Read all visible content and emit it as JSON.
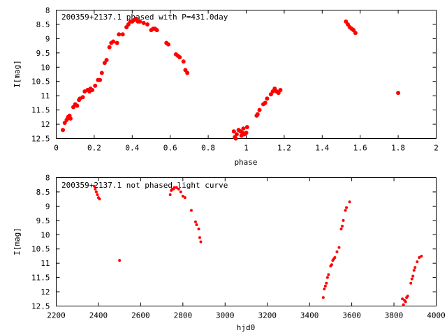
{
  "chart_data": [
    {
      "type": "scatter",
      "title": "200359+2137.1 phased with P=431.0day",
      "xlabel": "phase",
      "ylabel": "I[mag]",
      "xlim": [
        0,
        2
      ],
      "ylim": [
        12.5,
        8
      ],
      "y_inverted": true,
      "grid": false,
      "legend": "none",
      "marker_color": "#ff0000",
      "xticks": [
        "0",
        "0.2",
        "0.4",
        "0.6",
        "0.8",
        "1",
        "1.2",
        "1.4",
        "1.6",
        "1.8",
        "2"
      ],
      "yticks": [
        "8",
        "8.5",
        "9",
        "9.5",
        "10",
        "10.5",
        "11",
        "11.5",
        "12",
        "12.5"
      ],
      "series": [
        {
          "x": [
            0.035,
            0.045,
            0.055,
            0.062,
            0.07,
            0.075,
            0.09,
            0.1,
            0.11,
            0.12,
            0.125,
            0.14,
            0.15,
            0.165,
            0.175,
            0.18,
            0.19,
            0.205,
            0.22,
            0.23,
            0.24,
            0.255,
            0.265,
            0.28,
            0.29,
            0.3,
            0.32,
            0.33,
            0.35,
            0.37,
            0.38,
            0.39,
            0.4,
            0.41,
            0.42,
            0.43,
            0.44,
            0.46,
            0.48,
            0.5,
            0.51,
            0.52,
            0.53,
            0.58,
            0.59,
            0.63,
            0.64,
            0.65,
            0.67,
            0.68,
            0.69,
            0.935,
            0.94,
            0.945,
            0.95,
            0.96,
            0.97,
            0.975,
            0.98,
            0.985,
            0.99,
            1.0,
            1.005,
            1.055,
            1.06,
            1.07,
            1.09,
            1.1,
            1.11,
            1.13,
            1.14,
            1.15,
            1.16,
            1.17,
            1.18,
            1.525,
            1.535,
            1.545,
            1.555,
            1.565,
            1.575,
            1.8
          ],
          "y": [
            12.2,
            11.95,
            11.85,
            11.75,
            11.7,
            11.8,
            11.4,
            11.3,
            11.35,
            11.15,
            11.1,
            11.05,
            10.85,
            10.8,
            10.85,
            10.75,
            10.8,
            10.65,
            10.45,
            10.45,
            10.2,
            9.85,
            9.75,
            9.3,
            9.15,
            9.1,
            9.15,
            8.85,
            8.85,
            8.6,
            8.5,
            8.4,
            8.4,
            8.35,
            8.3,
            8.4,
            8.4,
            8.45,
            8.5,
            8.7,
            8.65,
            8.65,
            8.7,
            9.15,
            9.2,
            9.55,
            9.6,
            9.65,
            9.8,
            10.1,
            10.2,
            12.25,
            12.45,
            12.5,
            12.35,
            12.2,
            12.25,
            12.4,
            12.3,
            12.15,
            12.35,
            12.3,
            12.1,
            11.7,
            11.65,
            11.5,
            11.3,
            11.25,
            11.1,
            10.95,
            10.85,
            10.75,
            10.85,
            10.9,
            10.8,
            8.4,
            8.5,
            8.6,
            8.65,
            8.7,
            8.8,
            10.9
          ]
        }
      ]
    },
    {
      "type": "scatter",
      "title": "200359+2137.1 not phased light curve",
      "xlabel": "hjd0",
      "ylabel": "I[mag]",
      "xlim": [
        2200,
        4000
      ],
      "ylim": [
        12.5,
        8
      ],
      "y_inverted": true,
      "grid": false,
      "legend": "none",
      "marker_color": "#ff0000",
      "xticks": [
        "2200",
        "2400",
        "2600",
        "2800",
        "3000",
        "3200",
        "3400",
        "3600",
        "3800",
        "4000"
      ],
      "yticks": [
        "8",
        "8.5",
        "9",
        "9.5",
        "10",
        "10.5",
        "11",
        "11.5",
        "12",
        "12.5"
      ],
      "series": [
        {
          "x": [
            2380,
            2385,
            2390,
            2395,
            2400,
            2405,
            2500,
            2740,
            2745,
            2750,
            2755,
            2760,
            2770,
            2780,
            2790,
            2800,
            2810,
            2840,
            2860,
            2865,
            2875,
            2880,
            2885,
            3465,
            3470,
            3475,
            3480,
            3485,
            3490,
            3500,
            3505,
            3510,
            3515,
            3520,
            3530,
            3540,
            3550,
            3555,
            3560,
            3570,
            3575,
            3590,
            3840,
            3845,
            3850,
            3855,
            3860,
            3865,
            3880,
            3885,
            3890,
            3895,
            3900,
            3910,
            3920,
            3930
          ],
          "y": [
            8.3,
            8.4,
            8.5,
            8.6,
            8.7,
            8.75,
            10.9,
            8.6,
            8.45,
            8.4,
            8.4,
            8.35,
            8.35,
            8.4,
            8.5,
            8.65,
            8.7,
            9.15,
            9.55,
            9.65,
            9.8,
            10.1,
            10.25,
            12.2,
            11.9,
            11.8,
            11.7,
            11.5,
            11.4,
            11.1,
            11.05,
            10.9,
            10.85,
            10.8,
            10.6,
            10.45,
            9.8,
            9.7,
            9.5,
            9.15,
            9.05,
            8.85,
            12.25,
            12.45,
            12.3,
            12.35,
            12.2,
            12.15,
            11.7,
            11.55,
            11.45,
            11.25,
            11.15,
            10.95,
            10.8,
            10.75
          ]
        }
      ]
    }
  ]
}
